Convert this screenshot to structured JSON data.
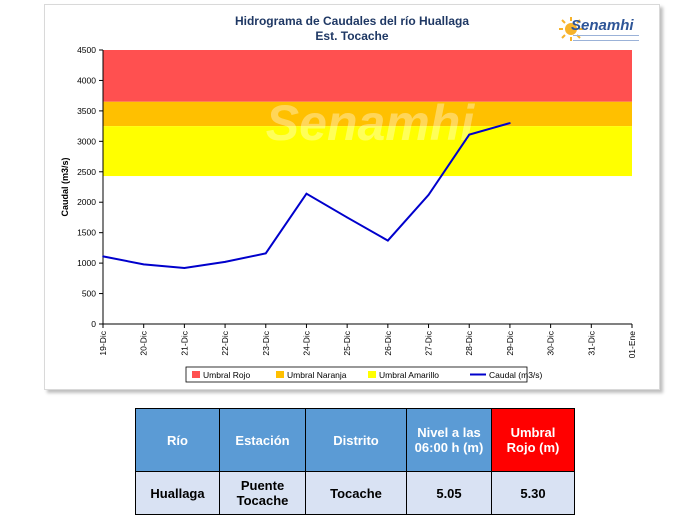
{
  "chart_data": {
    "type": "line",
    "title": "Hidrograma de Caudales del río Huallaga",
    "subtitle": "Est. Tocache",
    "ylabel": "Caudal (m3/s)",
    "xlabel": "",
    "ylim": [
      0,
      4500
    ],
    "yticks": [
      0,
      500,
      1000,
      1500,
      2000,
      2500,
      3000,
      3500,
      4000,
      4500
    ],
    "categories": [
      "19-Dic",
      "20-Dic",
      "21-Dic",
      "22-Dic",
      "23-Dic",
      "24-Dic",
      "25-Dic",
      "26-Dic",
      "27-Dic",
      "28-Dic",
      "29-Dic",
      "30-Dic",
      "31-Dic",
      "01-Ene"
    ],
    "series": [
      {
        "name": "Caudal (m3/s)",
        "color": "#0000cc",
        "values": [
          1110,
          980,
          920,
          1020,
          1160,
          2140,
          1750,
          1370,
          2120,
          3110,
          3300,
          null,
          null,
          null
        ]
      }
    ],
    "thresholds": [
      {
        "name": "Umbral Rojo",
        "color": "#ff5050",
        "from": 3650,
        "to": 4500
      },
      {
        "name": "Umbral Naranja",
        "color": "#ffc000",
        "from": 3250,
        "to": 3650
      },
      {
        "name": "Umbral Amarillo",
        "color": "#ffff00",
        "from": 2430,
        "to": 3250
      }
    ],
    "legend_position": "bottom",
    "grid": false
  },
  "logo": {
    "text": "Senamhi",
    "watermark": "Senamhi"
  },
  "table": {
    "headers": [
      "Río",
      "Estación",
      "Distrito",
      "Nivel a las 06:00 h (m)",
      "Umbral Rojo (m)"
    ],
    "row": [
      "Huallaga",
      "Puente Tocache",
      "Tocache",
      "5.05",
      "5.30"
    ]
  },
  "colors": {
    "header_blue": "#5b9bd5",
    "header_red": "#ff0000",
    "cell_bg": "#d9e2f3",
    "title_color": "#1f3864"
  }
}
